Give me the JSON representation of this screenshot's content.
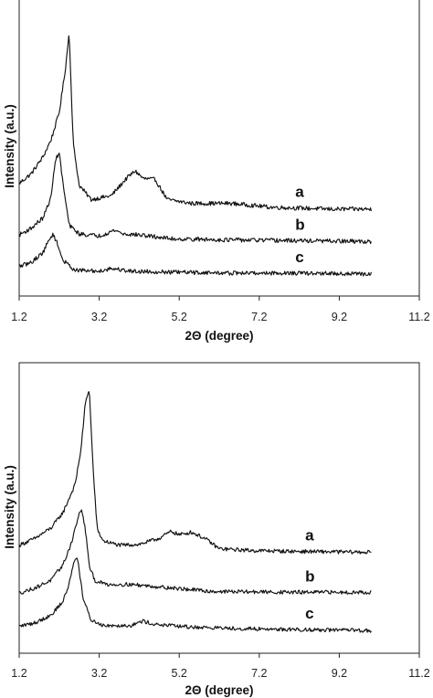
{
  "chart_data": [
    {
      "type": "line",
      "xlabel": "2Θ (degree)",
      "ylabel": "Intensity (a.u.)",
      "xlim": [
        1.2,
        11.2
      ],
      "xticks": [
        "1.2",
        "3.2",
        "5.2",
        "7.2",
        "9.2",
        "11.2"
      ],
      "grid": false,
      "series": [
        {
          "name": "a",
          "x": [
            1.2,
            1.5,
            1.8,
            2.0,
            2.2,
            2.35,
            2.45,
            2.55,
            2.7,
            3.0,
            3.5,
            3.9,
            4.1,
            4.3,
            4.6,
            4.9,
            5.5,
            6.5,
            7.5,
            9.0,
            10.0
          ],
          "y": [
            5.9,
            6.4,
            7.3,
            8.2,
            9.6,
            11.8,
            13.8,
            8.0,
            5.8,
            5.05,
            5.25,
            6.2,
            6.55,
            6.15,
            6.1,
            5.05,
            4.85,
            4.85,
            4.65,
            4.55,
            4.55
          ]
        },
        {
          "name": "b",
          "x": [
            1.2,
            1.5,
            1.8,
            2.0,
            2.1,
            2.2,
            2.3,
            2.45,
            2.7,
            3.2,
            3.6,
            3.8,
            4.2,
            5.0,
            6.0,
            8.0,
            10.0
          ],
          "y": [
            3.2,
            3.55,
            4.1,
            5.2,
            7.1,
            7.5,
            5.8,
            3.7,
            3.25,
            3.15,
            3.45,
            3.25,
            3.2,
            3.0,
            2.95,
            2.9,
            2.85
          ]
        },
        {
          "name": "c",
          "x": [
            1.2,
            1.5,
            1.8,
            1.95,
            2.05,
            2.15,
            2.3,
            2.6,
            3.2,
            3.5,
            4.0,
            5.0,
            6.5,
            8.0,
            10.0
          ],
          "y": [
            1.55,
            1.75,
            2.3,
            2.95,
            3.25,
            2.75,
            1.85,
            1.35,
            1.3,
            1.45,
            1.3,
            1.25,
            1.2,
            1.2,
            1.15
          ]
        }
      ]
    },
    {
      "type": "line",
      "xlabel": "2Θ (degree)",
      "ylabel": "Intensity (a.u.)",
      "xlim": [
        1.2,
        11.2
      ],
      "xticks": [
        "1.2",
        "3.2",
        "5.2",
        "7.2",
        "9.2",
        "11.2"
      ],
      "grid": false,
      "series": [
        {
          "name": "a",
          "x": [
            1.2,
            1.6,
            2.0,
            2.3,
            2.6,
            2.75,
            2.85,
            2.95,
            3.05,
            3.15,
            3.3,
            3.7,
            4.2,
            4.7,
            5.0,
            5.2,
            5.5,
            5.7,
            5.9,
            6.2,
            7.0,
            8.0,
            10.0
          ],
          "y": [
            6.2,
            6.6,
            7.2,
            8.1,
            9.7,
            11.8,
            14.3,
            15.2,
            10.5,
            7.1,
            6.45,
            6.2,
            6.25,
            6.6,
            7.0,
            6.8,
            6.95,
            6.75,
            6.5,
            6.0,
            5.9,
            5.85,
            5.8
          ]
        },
        {
          "name": "b",
          "x": [
            1.2,
            1.6,
            2.0,
            2.3,
            2.5,
            2.65,
            2.75,
            2.85,
            2.95,
            3.1,
            3.4,
            4.0,
            5.0,
            6.0,
            8.0,
            10.0
          ],
          "y": [
            3.45,
            3.75,
            4.2,
            5.1,
            6.3,
            7.6,
            8.3,
            7.2,
            5.0,
            4.15,
            3.95,
            3.95,
            3.75,
            3.55,
            3.5,
            3.5
          ]
        },
        {
          "name": "c",
          "x": [
            1.2,
            1.6,
            2.0,
            2.3,
            2.45,
            2.55,
            2.65,
            2.8,
            3.0,
            3.3,
            4.0,
            4.3,
            4.6,
            5.5,
            7.0,
            8.5,
            10.0
          ],
          "y": [
            1.55,
            1.75,
            2.2,
            3.0,
            4.0,
            5.1,
            5.6,
            3.1,
            1.9,
            1.6,
            1.6,
            1.85,
            1.65,
            1.5,
            1.4,
            1.35,
            1.3
          ]
        }
      ]
    }
  ]
}
